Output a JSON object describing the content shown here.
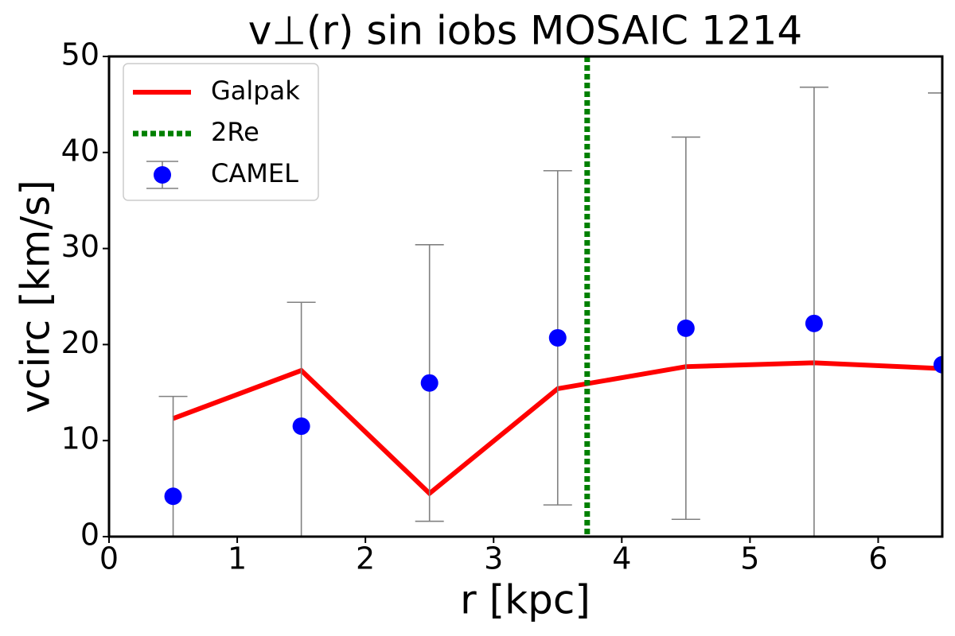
{
  "chart_data": {
    "type": "line",
    "title": "v⊥(r) sin iobs MOSAIC 1214",
    "xlabel": "r [kpc]",
    "ylabel": "vcirc [km/s]",
    "xlim": [
      0,
      6.5
    ],
    "ylim": [
      0,
      50
    ],
    "xticks": [
      0,
      1,
      2,
      3,
      4,
      5,
      6
    ],
    "yticks": [
      0,
      10,
      20,
      30,
      40,
      50
    ],
    "legend": "upper left",
    "series": [
      {
        "name": "Galpak",
        "color": "#ff0000",
        "type": "line",
        "x": [
          0.5,
          1.5,
          2.5,
          3.5,
          4.5,
          5.5,
          6.5
        ],
        "values": [
          12.3,
          17.3,
          4.5,
          15.4,
          17.7,
          18.1,
          17.5
        ]
      },
      {
        "name": "CAMEL",
        "color": "#0000ff",
        "type": "errorbar",
        "error_color": "#808080",
        "x": [
          0.5,
          1.5,
          2.5,
          3.5,
          4.5,
          5.5,
          6.5
        ],
        "values": [
          4.2,
          11.5,
          16.0,
          20.7,
          21.7,
          22.2,
          17.9
        ],
        "errors": [
          10.4,
          12.9,
          14.4,
          17.4,
          19.9,
          24.6,
          28.3
        ]
      }
    ],
    "vlines": [
      {
        "name": "2Re",
        "x": 3.73,
        "color": "#008000"
      }
    ]
  }
}
